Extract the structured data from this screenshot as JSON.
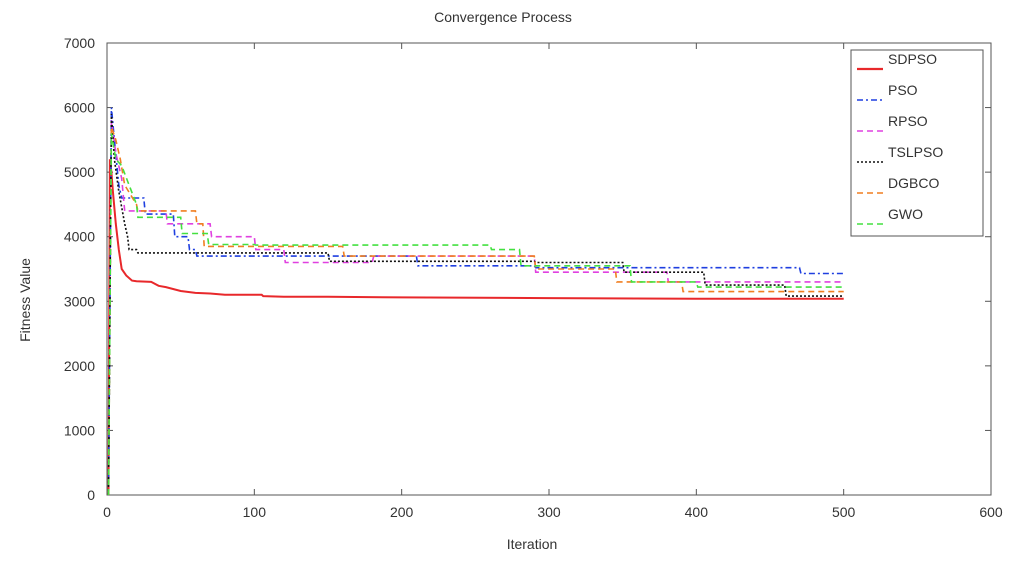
{
  "chart_data": {
    "type": "line",
    "title": "Convergence Process",
    "xlabel": "Iteration",
    "ylabel": "Fitness Value",
    "xlim": [
      0,
      600
    ],
    "ylim": [
      0,
      7000
    ],
    "xticks": [
      0,
      100,
      200,
      300,
      400,
      500,
      600
    ],
    "yticks": [
      0,
      1000,
      2000,
      3000,
      4000,
      5000,
      6000,
      7000
    ],
    "grid": false,
    "legend_position": "top-right",
    "series": [
      {
        "name": "SDPSO",
        "color": "#e8282b",
        "dash": "solid",
        "x": [
          1,
          2,
          3,
          4,
          6,
          8,
          10,
          13,
          17,
          20,
          30,
          35,
          40,
          50,
          60,
          70,
          80,
          105,
          106,
          120,
          150,
          200,
          300,
          400,
          500
        ],
        "y": [
          0,
          5200,
          5000,
          4700,
          4200,
          3800,
          3500,
          3400,
          3320,
          3310,
          3300,
          3240,
          3220,
          3160,
          3130,
          3120,
          3100,
          3100,
          3080,
          3070,
          3070,
          3060,
          3050,
          3040,
          3040
        ]
      },
      {
        "name": "PSO",
        "color": "#1f3fe0",
        "dash": "dashdot",
        "x": [
          1,
          3,
          5,
          8,
          10,
          25,
          26,
          45,
          46,
          55,
          56,
          60,
          61,
          210,
          211,
          290,
          291,
          470,
          471,
          500
        ],
        "y": [
          0,
          6000,
          5500,
          4800,
          4600,
          4600,
          4350,
          4350,
          4000,
          4000,
          3800,
          3800,
          3700,
          3700,
          3550,
          3550,
          3520,
          3520,
          3430,
          3430
        ]
      },
      {
        "name": "RPSO",
        "color": "#e040e0",
        "dash": "dashed",
        "x": [
          1,
          3,
          6,
          10,
          12,
          40,
          41,
          70,
          71,
          100,
          101,
          120,
          121,
          180,
          181,
          290,
          291,
          380,
          381,
          500
        ],
        "y": [
          0,
          5800,
          5300,
          4900,
          4400,
          4400,
          4200,
          4200,
          4000,
          4000,
          3800,
          3800,
          3600,
          3600,
          3700,
          3700,
          3450,
          3450,
          3300,
          3300
        ]
      },
      {
        "name": "TSLPSO",
        "color": "#111111",
        "dash": "dotted",
        "x": [
          1,
          3,
          5,
          8,
          12,
          14,
          15,
          20,
          21,
          150,
          151,
          290,
          291,
          350,
          351,
          405,
          406,
          460,
          461,
          500
        ],
        "y": [
          0,
          5900,
          5200,
          4700,
          4200,
          4000,
          3800,
          3800,
          3750,
          3750,
          3620,
          3620,
          3600,
          3600,
          3450,
          3450,
          3250,
          3250,
          3080,
          3080
        ]
      },
      {
        "name": "DGBCO",
        "color": "#f07f20",
        "dash": "dashed",
        "x": [
          1,
          3,
          6,
          9,
          12,
          20,
          21,
          60,
          61,
          65,
          66,
          160,
          161,
          290,
          291,
          345,
          346,
          390,
          391,
          500
        ],
        "y": [
          0,
          5700,
          5500,
          5200,
          4800,
          4500,
          4400,
          4400,
          4200,
          4200,
          3850,
          3850,
          3700,
          3700,
          3500,
          3500,
          3300,
          3300,
          3150,
          3150
        ]
      },
      {
        "name": "GWO",
        "color": "#44e040",
        "dash": "dashed",
        "x": [
          1,
          3,
          6,
          10,
          15,
          20,
          21,
          50,
          51,
          68,
          69,
          100,
          101,
          260,
          261,
          280,
          281,
          355,
          356,
          400,
          401,
          500
        ],
        "y": [
          0,
          5600,
          5200,
          5100,
          4800,
          4500,
          4300,
          4300,
          4050,
          4050,
          3880,
          3880,
          3870,
          3870,
          3800,
          3800,
          3550,
          3550,
          3300,
          3300,
          3220,
          3220
        ]
      }
    ]
  }
}
